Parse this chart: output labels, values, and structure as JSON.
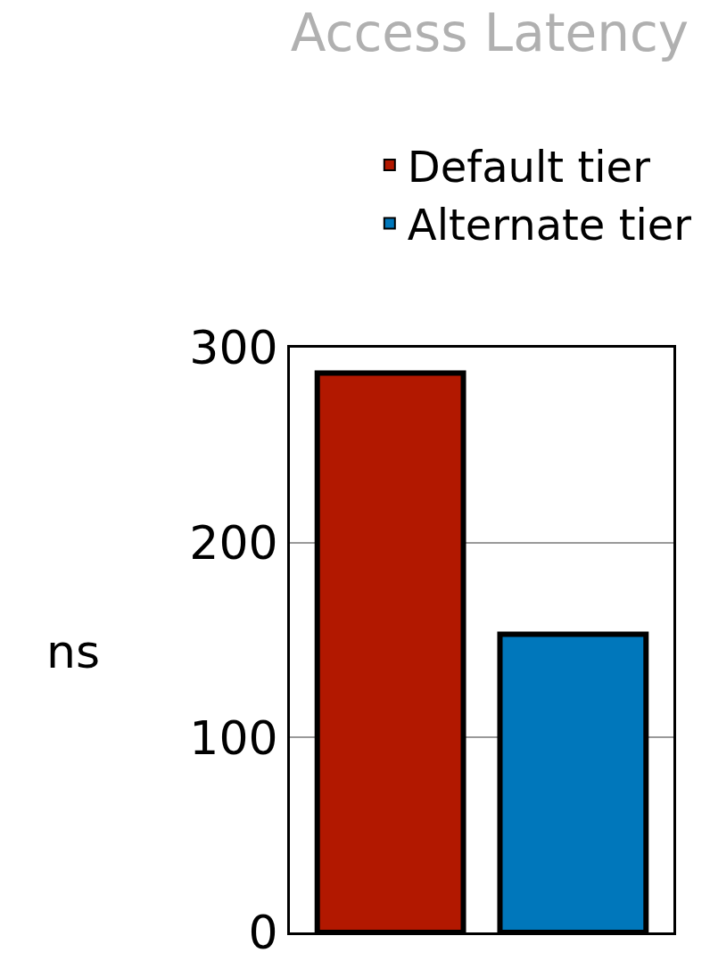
{
  "chart_data": {
    "type": "bar",
    "title": "Access Latency",
    "ylabel": "ns",
    "categories": [
      null,
      null
    ],
    "series": [
      {
        "name": "Default tier",
        "color": "#b21800",
        "values": [
          287,
          null
        ]
      },
      {
        "name": "Alternate tier",
        "color": "#0077bb",
        "values": [
          null,
          153
        ]
      }
    ],
    "ylim": [
      0,
      300
    ],
    "yticks": [
      0,
      100,
      200,
      300
    ],
    "grid": "y",
    "legend": "top right"
  }
}
